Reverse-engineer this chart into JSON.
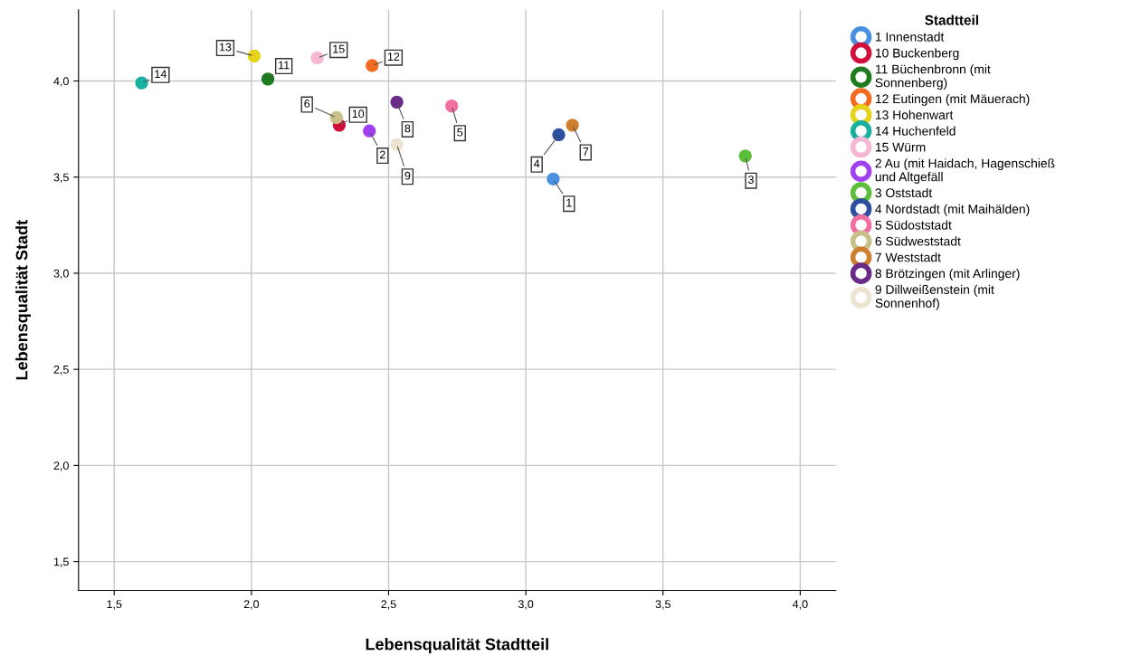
{
  "chart_data": {
    "type": "scatter",
    "xlabel": "Lebensqualität Stadtteil",
    "ylabel": "Lebensqualität Stadt",
    "legend_title": "Stadtteil",
    "legend": "right",
    "grid": true,
    "marker": "circle",
    "xlim": [
      1.37,
      4.13
    ],
    "ylim": [
      1.35,
      4.37
    ],
    "xticks": [
      {
        "value": 1.5,
        "label": "1,5"
      },
      {
        "value": 2.0,
        "label": "2,0"
      },
      {
        "value": 2.5,
        "label": "2,5"
      },
      {
        "value": 3.0,
        "label": "3,0"
      },
      {
        "value": 3.5,
        "label": "3,5"
      },
      {
        "value": 4.0,
        "label": "4,0"
      }
    ],
    "yticks": [
      {
        "value": 1.5,
        "label": "1,5"
      },
      {
        "value": 2.0,
        "label": "2,0"
      },
      {
        "value": 2.5,
        "label": "2,5"
      },
      {
        "value": 3.0,
        "label": "3,0"
      },
      {
        "value": 3.5,
        "label": "3,5"
      },
      {
        "value": 4.0,
        "label": "4,0"
      }
    ],
    "series": [
      {
        "name": "1 Innenstadt",
        "color": "#4a90e2",
        "x": [
          3.1
        ],
        "values": [
          3.49
        ]
      },
      {
        "name": "10 Buckenberg",
        "color": "#d0103a",
        "x": [
          2.32
        ],
        "values": [
          3.77
        ]
      },
      {
        "name": "11 Büchenbronn (mit\nSonnenberg)",
        "color": "#1e7b1e",
        "x": [
          2.06
        ],
        "values": [
          4.01
        ]
      },
      {
        "name": "12 Eutingen (mit Mäuerach)",
        "color": "#f26b21",
        "x": [
          2.44
        ],
        "values": [
          4.08
        ]
      },
      {
        "name": "13 Hohenwart",
        "color": "#e6d21a",
        "x": [
          2.01
        ],
        "values": [
          4.13
        ]
      },
      {
        "name": "14 Huchenfeld",
        "color": "#1ab0a0",
        "x": [
          1.6
        ],
        "values": [
          3.99
        ]
      },
      {
        "name": "15 Würm",
        "color": "#f7b6d2",
        "x": [
          2.24
        ],
        "values": [
          4.12
        ]
      },
      {
        "name": "2 Au (mit Haidach, Hagenschieß\nund Altgefäll",
        "color": "#a040f0",
        "x": [
          2.43
        ],
        "values": [
          3.74
        ]
      },
      {
        "name": "3 Oststadt",
        "color": "#5cbf3a",
        "x": [
          3.8
        ],
        "values": [
          3.61
        ]
      },
      {
        "name": "4 Nordstadt (mit Maihälden)",
        "color": "#2c4fa0",
        "x": [
          3.12
        ],
        "values": [
          3.72
        ]
      },
      {
        "name": "5 Südoststadt",
        "color": "#f06fa0",
        "x": [
          2.73
        ],
        "values": [
          3.87
        ]
      },
      {
        "name": "6 Südweststadt",
        "color": "#c8c088",
        "x": [
          2.31
        ],
        "values": [
          3.81
        ]
      },
      {
        "name": "7 Weststadt",
        "color": "#cd8030",
        "x": [
          3.17
        ],
        "values": [
          3.77
        ]
      },
      {
        "name": "8 Brötzingen (mit Arlinger)",
        "color": "#6a2a8a",
        "x": [
          2.53
        ],
        "values": [
          3.89
        ]
      },
      {
        "name": "9 Dillweißenstein (mit\nSonnenhof)",
        "color": "#ece4d0",
        "x": [
          2.53
        ],
        "values": [
          3.67
        ]
      }
    ],
    "annotations": [
      {
        "text": "1",
        "x": 3.1,
        "y": 3.49
      },
      {
        "text": "10",
        "x": 2.32,
        "y": 3.77
      },
      {
        "text": "11",
        "x": 2.06,
        "y": 4.01
      },
      {
        "text": "12",
        "x": 2.44,
        "y": 4.08
      },
      {
        "text": "13",
        "x": 2.01,
        "y": 4.13
      },
      {
        "text": "14",
        "x": 1.6,
        "y": 3.99
      },
      {
        "text": "15",
        "x": 2.24,
        "y": 4.12
      },
      {
        "text": "2",
        "x": 2.43,
        "y": 3.74
      },
      {
        "text": "3",
        "x": 3.8,
        "y": 3.61
      },
      {
        "text": "4",
        "x": 3.12,
        "y": 3.72
      },
      {
        "text": "5",
        "x": 2.73,
        "y": 3.87
      },
      {
        "text": "6",
        "x": 2.31,
        "y": 3.81
      },
      {
        "text": "7",
        "x": 3.17,
        "y": 3.77
      },
      {
        "text": "8",
        "x": 2.53,
        "y": 3.89
      },
      {
        "text": "9",
        "x": 2.53,
        "y": 3.67
      }
    ]
  }
}
